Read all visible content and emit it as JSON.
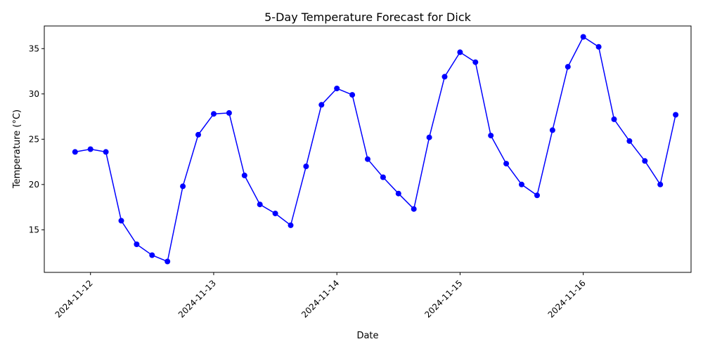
{
  "chart_data": {
    "type": "line",
    "title": "5-Day Temperature Forecast for Dick",
    "xlabel": "Date",
    "ylabel": "Temperature (°C)",
    "x_ticks": [
      "2024-11-12",
      "2024-11-13",
      "2024-11-14",
      "2024-11-15",
      "2024-11-16"
    ],
    "y_ticks": [
      15,
      20,
      25,
      30,
      35
    ],
    "ylim": [
      10.3,
      37.5
    ],
    "xlim": [
      "2024-11-11 15:00",
      "2024-11-16 21:00"
    ],
    "grid": false,
    "legend": "none",
    "series": [
      {
        "color": "#0000ff",
        "marker": "circle",
        "x": [
          "2024-11-11 21:00",
          "2024-11-12 00:00",
          "2024-11-12 03:00",
          "2024-11-12 06:00",
          "2024-11-12 09:00",
          "2024-11-12 12:00",
          "2024-11-12 15:00",
          "2024-11-12 18:00",
          "2024-11-12 21:00",
          "2024-11-13 00:00",
          "2024-11-13 03:00",
          "2024-11-13 06:00",
          "2024-11-13 09:00",
          "2024-11-13 12:00",
          "2024-11-13 15:00",
          "2024-11-13 18:00",
          "2024-11-13 21:00",
          "2024-11-14 00:00",
          "2024-11-14 03:00",
          "2024-11-14 06:00",
          "2024-11-14 09:00",
          "2024-11-14 12:00",
          "2024-11-14 15:00",
          "2024-11-14 18:00",
          "2024-11-14 21:00",
          "2024-11-15 00:00",
          "2024-11-15 03:00",
          "2024-11-15 06:00",
          "2024-11-15 09:00",
          "2024-11-15 12:00",
          "2024-11-15 15:00",
          "2024-11-15 18:00",
          "2024-11-15 21:00",
          "2024-11-16 00:00",
          "2024-11-16 03:00",
          "2024-11-16 06:00",
          "2024-11-16 09:00",
          "2024-11-16 12:00",
          "2024-11-16 15:00",
          "2024-11-16 18:00"
        ],
        "values": [
          23.6,
          23.9,
          23.6,
          16.0,
          13.4,
          12.2,
          11.5,
          19.8,
          25.5,
          27.8,
          27.9,
          21.0,
          17.8,
          16.8,
          15.5,
          22.0,
          28.8,
          30.6,
          29.9,
          22.8,
          20.8,
          19.0,
          17.3,
          25.2,
          31.9,
          34.6,
          33.5,
          25.4,
          22.3,
          20.0,
          18.8,
          26.0,
          33.0,
          36.3,
          35.2,
          27.2,
          24.8,
          22.6,
          20.0,
          27.7
        ]
      }
    ]
  }
}
